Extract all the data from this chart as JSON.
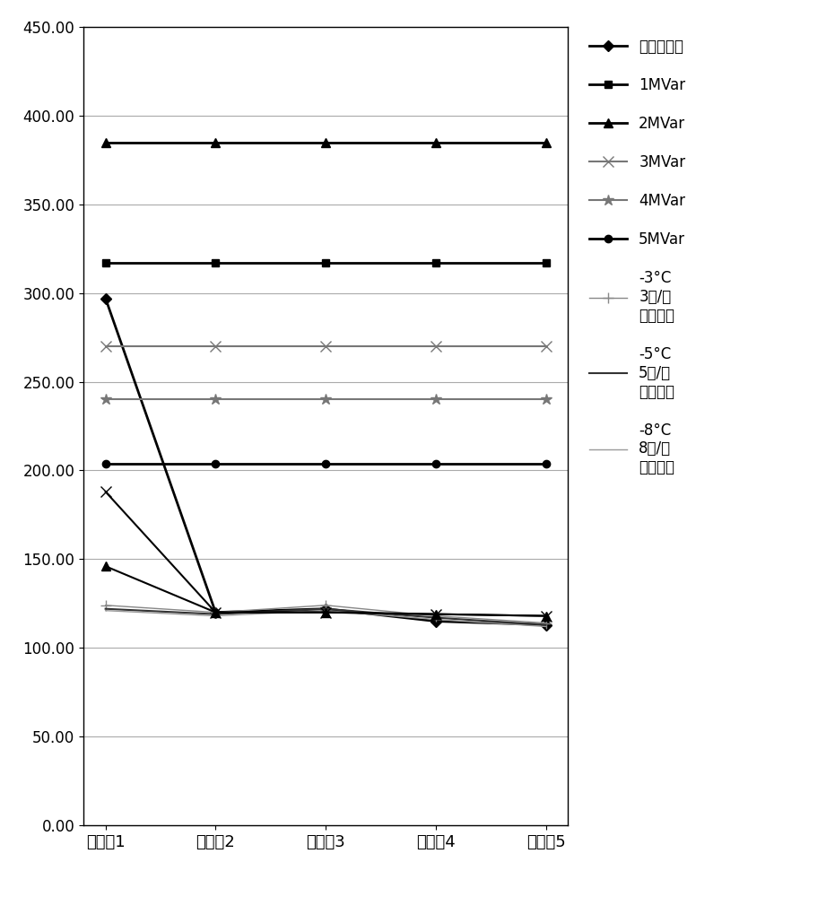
{
  "categories": [
    "馈线兵1",
    "馈线兵2",
    "馈线兵3",
    "馈线兵4",
    "馈线兵5"
  ],
  "series": [
    {
      "label": "无融冰装置",
      "values": [
        297,
        120,
        122,
        115,
        113
      ],
      "color": "#000000",
      "marker": "D",
      "markersize": 6,
      "linewidth": 2,
      "linestyle": "-",
      "in_legend": true
    },
    {
      "label": "1MVar",
      "values": [
        317,
        317,
        317,
        317,
        317
      ],
      "color": "#000000",
      "marker": "s",
      "markersize": 6,
      "linewidth": 2,
      "linestyle": "-",
      "in_legend": true
    },
    {
      "label": "2MVar",
      "values": [
        385,
        385,
        385,
        385,
        385
      ],
      "color": "#000000",
      "marker": "^",
      "markersize": 7,
      "linewidth": 2,
      "linestyle": "-",
      "in_legend": true
    },
    {
      "label": "3MVar",
      "values": [
        270,
        270,
        270,
        270,
        270
      ],
      "color": "#777777",
      "marker": "x",
      "markersize": 8,
      "linewidth": 1.5,
      "linestyle": "-",
      "in_legend": true
    },
    {
      "label": "4MVar",
      "values": [
        240,
        240,
        240,
        240,
        240
      ],
      "color": "#777777",
      "marker": "*",
      "markersize": 9,
      "linewidth": 1.5,
      "linestyle": "-",
      "in_legend": true
    },
    {
      "label": "5MVar",
      "values": [
        204,
        204,
        204,
        204,
        204
      ],
      "color": "#000000",
      "marker": "o",
      "markersize": 6,
      "linewidth": 2,
      "linestyle": "-",
      "in_legend": true
    },
    {
      "label": "-3°C\n3米/秒\n保线电流",
      "values": [
        124,
        120,
        124,
        118,
        114
      ],
      "color": "#888888",
      "marker": "+",
      "markersize": 8,
      "linewidth": 1,
      "linestyle": "-",
      "in_legend": true
    },
    {
      "label": "-5°C\n5米/秒\n保线电流",
      "values": [
        122,
        119,
        122,
        117,
        113
      ],
      "color": "#333333",
      "marker": "None",
      "markersize": 0,
      "linewidth": 1.5,
      "linestyle": "-",
      "in_legend": true
    },
    {
      "label": "-8°C\n8米/秒\n保线电流",
      "values": [
        121,
        118,
        121,
        116,
        112
      ],
      "color": "#999999",
      "marker": "None",
      "markersize": 0,
      "linewidth": 1,
      "linestyle": "-",
      "in_legend": true
    },
    {
      "label": "no_legend_x",
      "values": [
        188,
        120,
        120,
        119,
        118
      ],
      "color": "#000000",
      "marker": "x",
      "markersize": 8,
      "linewidth": 1.5,
      "linestyle": "-",
      "in_legend": false
    },
    {
      "label": "no_legend_star",
      "values": [
        146,
        120,
        120,
        119,
        118
      ],
      "color": "#000000",
      "marker": "^",
      "markersize": 7,
      "linewidth": 1.5,
      "linestyle": "-",
      "in_legend": false
    }
  ],
  "ylim": [
    0,
    450
  ],
  "yticks": [
    0,
    50,
    100,
    150,
    200,
    250,
    300,
    350,
    400,
    450
  ],
  "background_color": "#ffffff",
  "grid_color": "#aaaaaa",
  "figsize": [
    9.31,
    10.0
  ],
  "dpi": 100
}
